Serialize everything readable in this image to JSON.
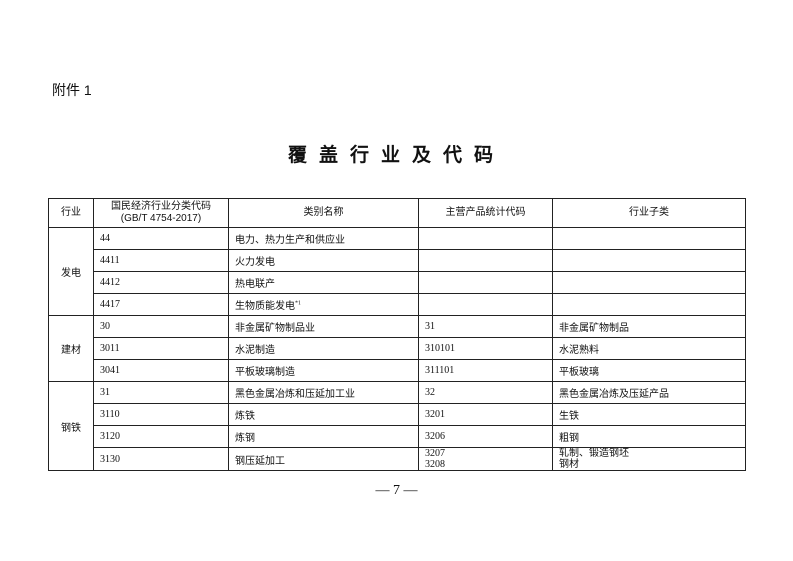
{
  "attachment_label": "附件 1",
  "title": "覆盖行业及代码",
  "table": {
    "headers": [
      "行业",
      "国民经济行业分类代码",
      "(GB/T 4754-2017)",
      "类别名称",
      "主营产品统计代码",
      "行业子类"
    ],
    "groups": [
      {
        "industry": "发电",
        "rows": [
          {
            "code": "44",
            "name": "电力、热力生产和供应业",
            "product_code": "",
            "subclass": ""
          },
          {
            "code": "4411",
            "name": "火力发电",
            "product_code": "",
            "subclass": ""
          },
          {
            "code": "4412",
            "name": "热电联产",
            "product_code": "",
            "subclass": ""
          },
          {
            "code": "4417",
            "name": "生物质能发电",
            "note": "*1",
            "product_code": "",
            "subclass": ""
          }
        ]
      },
      {
        "industry": "建材",
        "rows": [
          {
            "code": "30",
            "name": "非金属矿物制品业",
            "product_code": "31",
            "subclass": "非金属矿物制品"
          },
          {
            "code": "3011",
            "name": "水泥制造",
            "product_code": "310101",
            "subclass": "水泥熟料"
          },
          {
            "code": "3041",
            "name": "平板玻璃制造",
            "product_code": "311101",
            "subclass": "平板玻璃"
          }
        ]
      },
      {
        "industry": "钢铁",
        "rows": [
          {
            "code": "31",
            "name": "黑色金属冶炼和压延加工业",
            "product_code": "32",
            "subclass": "黑色金属冶炼及压延产品"
          },
          {
            "code": "3110",
            "name": "炼铁",
            "product_code": "3201",
            "subclass": "生铁"
          },
          {
            "code": "3120",
            "name": "炼钢",
            "product_code": "3206",
            "subclass": "粗钢"
          },
          {
            "code": "3130",
            "name": "钢压延加工",
            "product_code": "3207",
            "product_code_2": "3208",
            "subclass": "轧制、锻造钢坯",
            "subclass_2": "钢材"
          }
        ]
      }
    ]
  },
  "page_number": "— 7 —"
}
